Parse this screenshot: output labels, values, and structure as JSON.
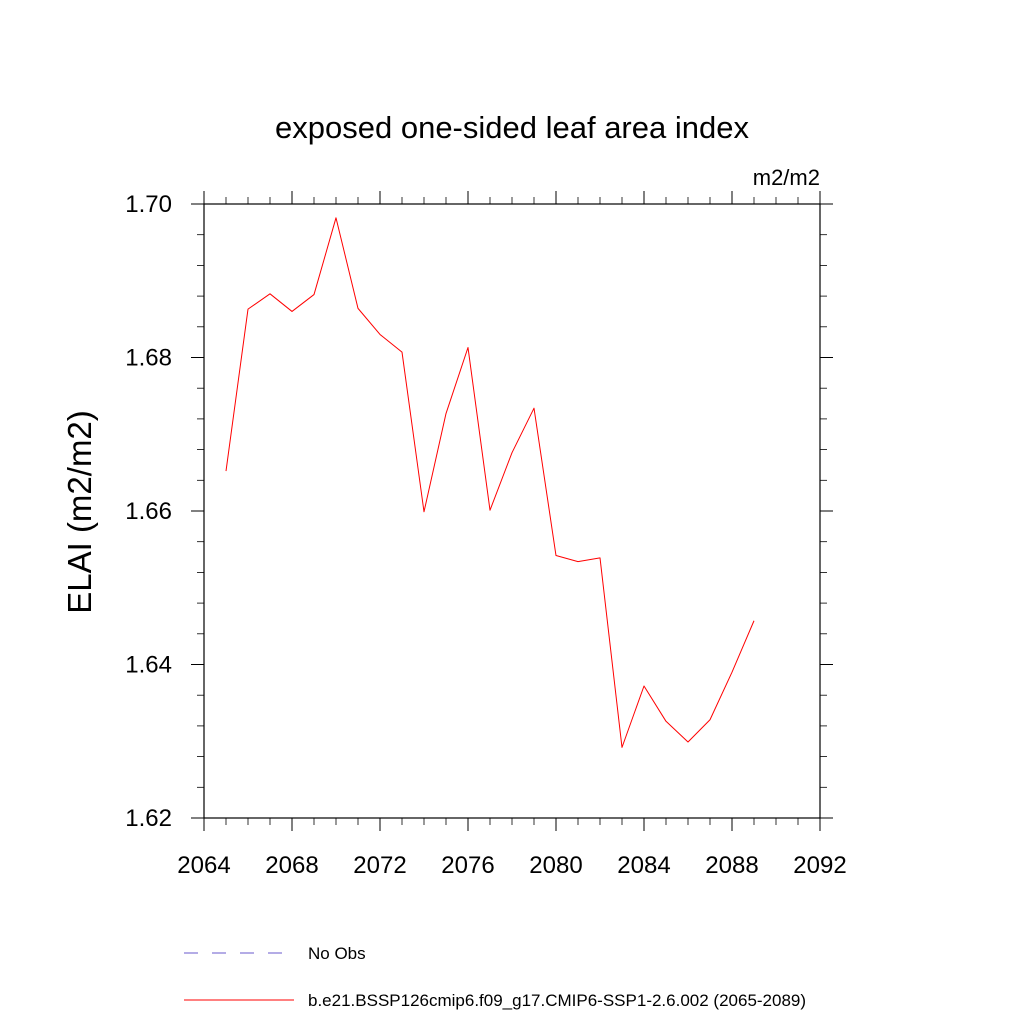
{
  "chart_data": {
    "type": "line",
    "title": "exposed one-sided leaf area index",
    "units": "m2/m2",
    "ylabel": "ELAI  (m2/m2)",
    "xlabel": "",
    "xlim": [
      2064,
      2092
    ],
    "ylim": [
      1.62,
      1.7
    ],
    "xticks": [
      "2064",
      "2068",
      "2072",
      "2076",
      "2080",
      "2084",
      "2088",
      "2092"
    ],
    "yticks": [
      "1.62",
      "1.64",
      "1.66",
      "1.68",
      "1.70"
    ],
    "grid": false,
    "legend_position": "bottom",
    "series": [
      {
        "name": "b.e21.BSSP126cmip6.f09_g17.CMIP6-SSP1-2.6.002 (2065-2089)",
        "color": "#ff0000",
        "x": [
          2065,
          2066,
          2067,
          2068,
          2069,
          2070,
          2071,
          2072,
          2073,
          2074,
          2075,
          2076,
          2077,
          2078,
          2079,
          2080,
          2081,
          2082,
          2083,
          2084,
          2085,
          2086,
          2087,
          2088,
          2089
        ],
        "y": [
          1.6652,
          1.6863,
          1.6883,
          1.686,
          1.6882,
          1.6982,
          1.6864,
          1.683,
          1.6807,
          1.6599,
          1.6727,
          1.6813,
          1.6601,
          1.6676,
          1.6734,
          1.6542,
          1.6534,
          1.6539,
          1.6292,
          1.6372,
          1.6326,
          1.6299,
          1.6328,
          1.639,
          1.6457
        ]
      }
    ],
    "legend": [
      {
        "label": "No Obs",
        "color": "#6a5acd",
        "style": "dashed"
      },
      {
        "label": "b.e21.BSSP126cmip6.f09_g17.CMIP6-SSP1-2.6.002 (2065-2089)",
        "color": "#ff0000",
        "style": "solid"
      }
    ]
  }
}
